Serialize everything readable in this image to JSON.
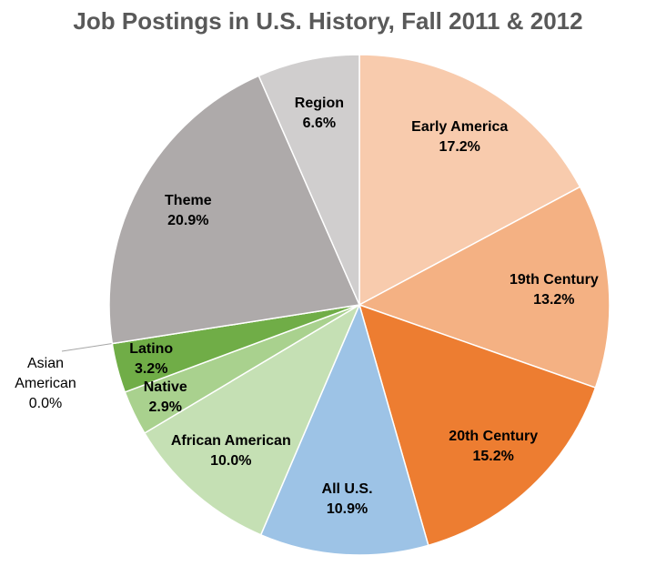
{
  "chart_data": {
    "type": "pie",
    "title": "Job Postings in U.S. History, Fall 2011 & 2012",
    "categories": [
      "Early America",
      "19th Century",
      "20th Century",
      "All U.S.",
      "African American",
      "Native",
      "Latino",
      "Asian American",
      "Theme",
      "Region"
    ],
    "values": [
      17.2,
      13.2,
      15.2,
      10.9,
      10.0,
      2.9,
      3.2,
      0.0,
      20.9,
      6.6
    ],
    "value_labels": [
      "17.2%",
      "13.2%",
      "15.2%",
      "10.9%",
      "10.0%",
      "2.9%",
      "3.2%",
      "0.0%",
      "20.9%",
      "6.6%"
    ],
    "colors": [
      "#f8cbad",
      "#f4b183",
      "#ed7d31",
      "#9dc3e6",
      "#c5e0b4",
      "#a9d18e",
      "#70ad47",
      "#548235",
      "#aeaaaa",
      "#d0cece"
    ]
  }
}
